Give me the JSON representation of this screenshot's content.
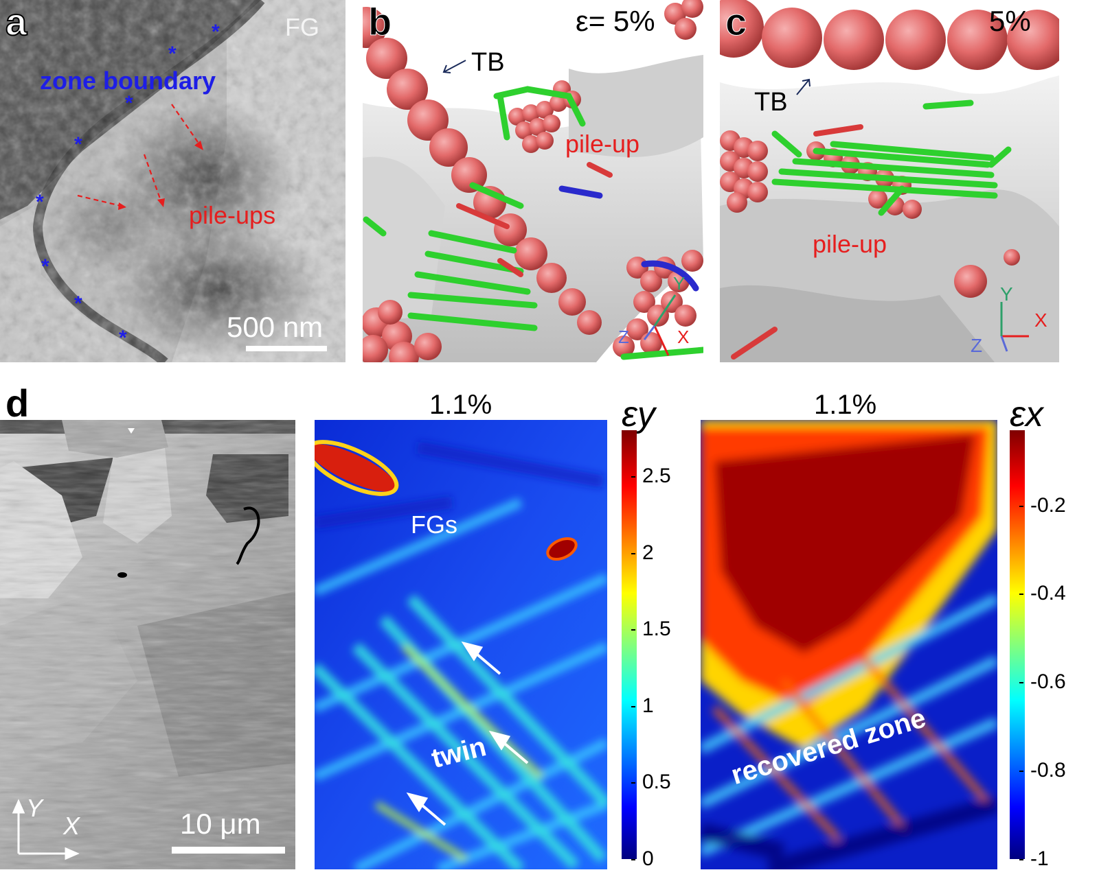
{
  "panel_a": {
    "label": "a",
    "fg_label": "FG",
    "zone_boundary_label": "zone boundary",
    "pileups_label": "pile-ups",
    "scalebar_label": "500 nm",
    "colors": {
      "boundary_text": "#1e1ee6",
      "pileup_text": "#e61e1e"
    }
  },
  "panel_b": {
    "label": "b",
    "strain_label": "ε= 5%",
    "tb_label": "TB",
    "pileup_label": "pile-up",
    "axis_labels": {
      "x": "X",
      "y": "Y",
      "z": "Z"
    }
  },
  "panel_c": {
    "label": "c",
    "strain_label": "5%",
    "tb_label": "TB",
    "pileup_label": "pile-up",
    "axis_labels": {
      "x": "X",
      "y": "Y",
      "z": "Z"
    }
  },
  "panel_d": {
    "label": "d",
    "scalebar_label": "10 μm",
    "axis_labels": {
      "x": "X",
      "y": "Y"
    },
    "map_y": {
      "title": "1.1%",
      "colorbar_label": "εy",
      "annotations": {
        "fgs": "FGs",
        "twin": "twin"
      },
      "colorbar_ticks": [
        "0",
        "0.5",
        "1",
        "1.5",
        "2",
        "2.5"
      ]
    },
    "map_x": {
      "title": "1.1%",
      "colorbar_label": "εx",
      "annotations": {
        "zone": "recovered zone"
      },
      "colorbar_ticks": [
        "-1",
        "-0.8",
        "-0.6",
        "-0.4",
        "-0.2"
      ]
    }
  },
  "chart_data": [
    {
      "type": "heatmap",
      "title": "1.1%",
      "colorbar_label": "εy",
      "colorbar_range": [
        0,
        2.8
      ],
      "colorbar_ticks": [
        0,
        0.5,
        1,
        1.5,
        2,
        2.5
      ]
    },
    {
      "type": "heatmap",
      "title": "1.1%",
      "colorbar_label": "εx",
      "colorbar_range": [
        -1,
        -0.03
      ],
      "colorbar_ticks": [
        -1,
        -0.8,
        -0.6,
        -0.4,
        -0.2
      ]
    }
  ]
}
